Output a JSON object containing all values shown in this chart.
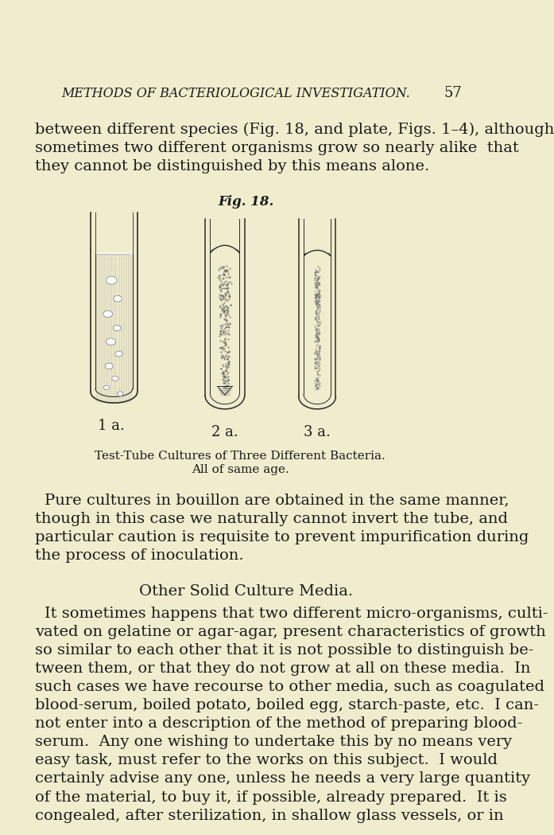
{
  "bg_color": "#f0edce",
  "text_color": "#1a1a1a",
  "header_italic": "METHODS OF BACTERIOLOGICAL INVESTIGATION.",
  "header_page": "57",
  "para1_lines": [
    "between different species (Fig. 18, and plate, Figs. 1–4), although",
    "sometimes two different organisms grow so nearly alike  that",
    "they cannot be distinguished by this means alone."
  ],
  "fig_label": "Fig. 18.",
  "tube_label1": "1 a.",
  "tube_label2": "2 a.",
  "tube_label3": "3 a.",
  "caption1": "Test-Tube Cultures of Three Different Bacteria.",
  "caption2": "All of same age.",
  "para2_lines": [
    "Pure cultures in bouillon are obtained in the same manner,",
    "though in this case we naturally cannot invert the tube, and",
    "particular caution is requisite to prevent impurification during",
    "the process of inoculation."
  ],
  "section_heading": "Other Solid Culture Media.",
  "para3_lines": [
    "It sometimes happens that two different micro-organisms, culti-",
    "vated on gelatine or agar-agar, present characteristics of growth",
    "so similar to each other that it is not possible to distinguish be-",
    "tween them, or that they do not grow at all on these media.  In",
    "such cases we have recourse to other media, such as coagulated",
    "blood-serum, boiled potato, boiled egg, starch-paste, etc.  I can-",
    "not enter into a description of the method of preparing blood-",
    "serum.  Any one wishing to undertake this by no means very",
    "easy task, must refer to the works on this subject.  I would",
    "certainly advise any one, unless he needs a very large quantity",
    "of the material, to buy it, if possible, already prepared.  It is",
    "congealed, after sterilization, in shallow glass vessels, or in"
  ]
}
